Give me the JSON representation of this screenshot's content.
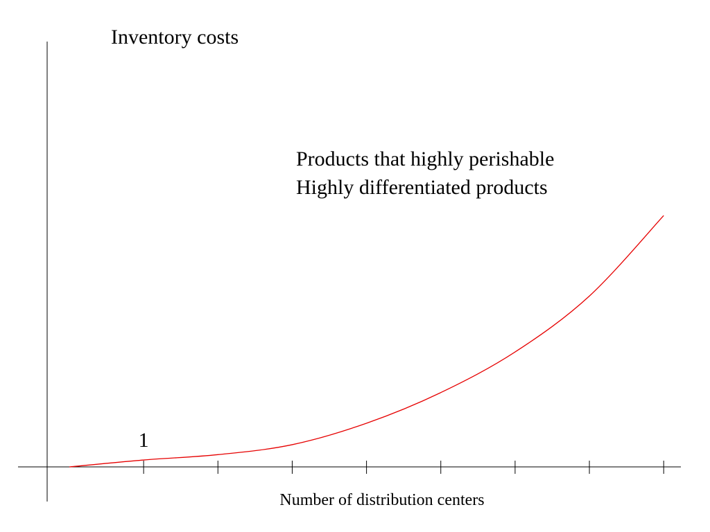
{
  "chart_data": {
    "type": "line",
    "title": "",
    "xlabel": "Number of distribution centers",
    "ylabel": "Inventory costs",
    "annotations": [
      "Products that highly perishable",
      "Highly differentiated products"
    ],
    "tick_labels": [
      {
        "x": 1,
        "text": "1"
      }
    ],
    "x_ticks": [
      1,
      2,
      3,
      4,
      5,
      6,
      7,
      8
    ],
    "xlim": [
      0,
      8.2
    ],
    "ylim": [
      0,
      3.4
    ],
    "grid": false,
    "legend": "none",
    "series": [
      {
        "color": "#e60000",
        "x": [
          0,
          1,
          2,
          3,
          4,
          5,
          6,
          7,
          8
        ],
        "y": [
          0,
          0.09,
          0.16,
          0.29,
          0.57,
          0.97,
          1.5,
          2.23,
          3.28
        ]
      }
    ],
    "colors": {
      "axis": "#000000",
      "curve": "#e60000",
      "text": "#000000"
    }
  }
}
